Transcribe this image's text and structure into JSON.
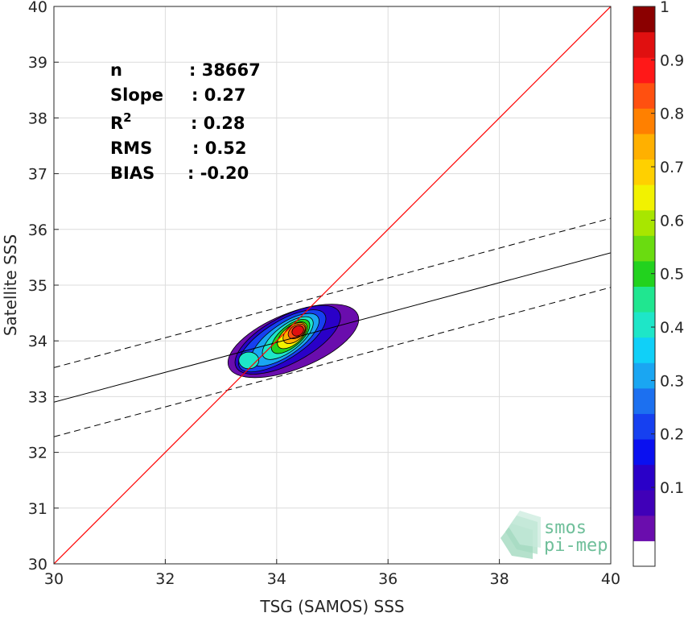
{
  "chart_data": {
    "type": "heatmap",
    "xlabel": "TSG (SAMOS) SSS",
    "ylabel": "Satellite SSS",
    "xlim": [
      30,
      40
    ],
    "ylim": [
      30,
      40
    ],
    "xticks": [
      "30",
      "32",
      "34",
      "36",
      "38",
      "40"
    ],
    "yticks": [
      "30",
      "31",
      "32",
      "33",
      "34",
      "35",
      "36",
      "37",
      "38",
      "39",
      "40"
    ],
    "grid": true,
    "stats": [
      {
        "label": "n",
        "value": ": 38667"
      },
      {
        "label": "Slope",
        "value": ": 0.27"
      },
      {
        "label": "R",
        "sup": "2",
        "value": ": 0.28"
      },
      {
        "label": "RMS",
        "value": ": 0.52"
      },
      {
        "label": "BIAS",
        "value": ": -0.20"
      }
    ],
    "identity_line": {
      "x": [
        30,
        40
      ],
      "y": [
        30,
        40
      ],
      "color": "#ff0000"
    },
    "regression_line": {
      "x": [
        30,
        40
      ],
      "y": [
        32.9,
        35.58
      ]
    },
    "dashed_upper": {
      "x": [
        30,
        40
      ],
      "y": [
        33.52,
        36.2
      ]
    },
    "dashed_lower": {
      "x": [
        30,
        40
      ],
      "y": [
        32.28,
        34.96
      ]
    },
    "density_levels": [
      {
        "level": 0.05,
        "color": "#6a0dad",
        "cx": 34.3,
        "cy": 34.0,
        "rx": 1.25,
        "ry": 0.5,
        "angle": 22
      },
      {
        "level": 0.1,
        "color": "#2a00c8",
        "cx": 34.2,
        "cy": 34.02,
        "rx": 1.05,
        "ry": 0.42,
        "angle": 28
      },
      {
        "level": 0.2,
        "color": "#1640f0",
        "cx": 34.1,
        "cy": 34.0,
        "rx": 0.9,
        "ry": 0.34,
        "angle": 32
      },
      {
        "level": 0.3,
        "color": "#1aa6f2",
        "cx": 34.15,
        "cy": 34.02,
        "rx": 0.72,
        "ry": 0.28,
        "angle": 35
      },
      {
        "level": 0.4,
        "color": "#1ee6c8",
        "cx": 34.2,
        "cy": 34.05,
        "rx": 0.55,
        "ry": 0.23,
        "angle": 38
      },
      {
        "level": 0.5,
        "color": "#22d21e",
        "cx": 34.25,
        "cy": 34.08,
        "rx": 0.42,
        "ry": 0.19,
        "angle": 40
      },
      {
        "level": 0.6,
        "color": "#f2f200",
        "cx": 34.28,
        "cy": 34.1,
        "rx": 0.32,
        "ry": 0.16,
        "angle": 40
      },
      {
        "level": 0.7,
        "color": "#ffb000",
        "cx": 34.32,
        "cy": 34.14,
        "rx": 0.24,
        "ry": 0.14,
        "angle": 40
      },
      {
        "level": 0.8,
        "color": "#ff5010",
        "cx": 34.36,
        "cy": 34.17,
        "rx": 0.17,
        "ry": 0.11,
        "angle": 35
      },
      {
        "level": 0.9,
        "color": "#e01010",
        "cx": 34.38,
        "cy": 34.18,
        "rx": 0.11,
        "ry": 0.085,
        "angle": 30
      }
    ],
    "colorbar": {
      "levels": [
        0,
        0.05,
        0.1,
        0.15,
        0.2,
        0.25,
        0.3,
        0.35,
        0.4,
        0.45,
        0.5,
        0.55,
        0.6,
        0.65,
        0.7,
        0.75,
        0.8,
        0.85,
        0.9,
        0.95,
        1.0
      ],
      "colors": [
        "#ffffff",
        "#6a0dad",
        "#4000b8",
        "#2a00c8",
        "#0a10f0",
        "#1640f0",
        "#1c70f0",
        "#1aa6f2",
        "#10d0f8",
        "#1ee6c8",
        "#20e690",
        "#22d21e",
        "#6adc10",
        "#a8e600",
        "#f2f200",
        "#ffd000",
        "#ffb000",
        "#ff8000",
        "#ff5010",
        "#ff1818",
        "#e01010",
        "#8b0000"
      ],
      "ticks": [
        "0.1",
        "0.2",
        "0.3",
        "0.4",
        "0.5",
        "0.6",
        "0.7",
        "0.8",
        "0.9",
        "1"
      ]
    },
    "logo_text": [
      "smos",
      "pi-mep"
    ]
  }
}
